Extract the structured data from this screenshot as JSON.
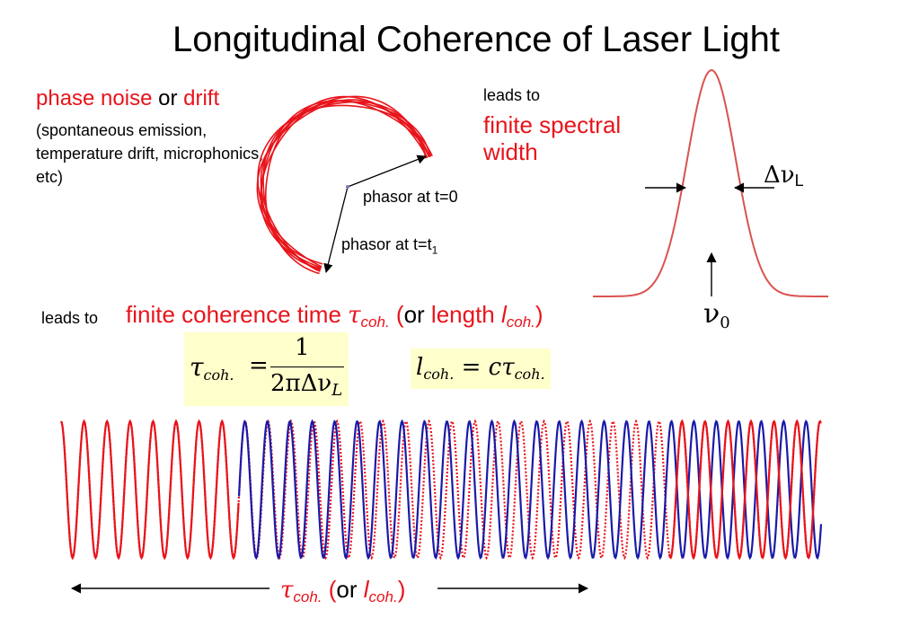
{
  "title": "Longitudinal Coherence of Laser Light",
  "phase_noise": {
    "part1": "phase noise",
    "part2": " or ",
    "part3": "drift"
  },
  "causes": "(spontaneous emission, temperature drift, microphonics, etc)",
  "leads_to_1": "leads to",
  "finite_spectral_width": "finite spectral width",
  "phasor_t0": "phasor at t=0",
  "phasor_t1": {
    "text": "phasor at t=t",
    "sub": "1"
  },
  "delta_nu_L": {
    "symbol": "Δν",
    "sub": "L"
  },
  "nu_0": {
    "symbol": "ν",
    "sub": "0"
  },
  "leads_to_2": "leads to",
  "coherence_line": {
    "text": "finite coherence time ",
    "tau": "τ",
    "tau_sub": "coh.",
    "paren_open": " (",
    "or": "or",
    "length": " length ",
    "l": "l",
    "l_sub": "coh.",
    "paren_close": ")"
  },
  "eq1": {
    "lhs": "τ",
    "lhs_sub": "coh.",
    "equals": "=",
    "numerator": "1",
    "denominator": "2πΔν",
    "den_sub": "L"
  },
  "eq2": {
    "lhs": "l",
    "lhs_sub": "coh.",
    "equals": "=",
    "rhs": "cτ",
    "rhs_sub": "coh."
  },
  "bottom_label": {
    "tau": "τ",
    "tau_sub": "coh.",
    "paren_open": " (",
    "or": "or",
    "l": " l",
    "l_sub": "coh.",
    "paren_close": ")"
  },
  "colors": {
    "red": "#e8141b",
    "blue": "#1a1aa8",
    "spectrum": "#d9534f",
    "eq_bg": "#ffffcc"
  }
}
